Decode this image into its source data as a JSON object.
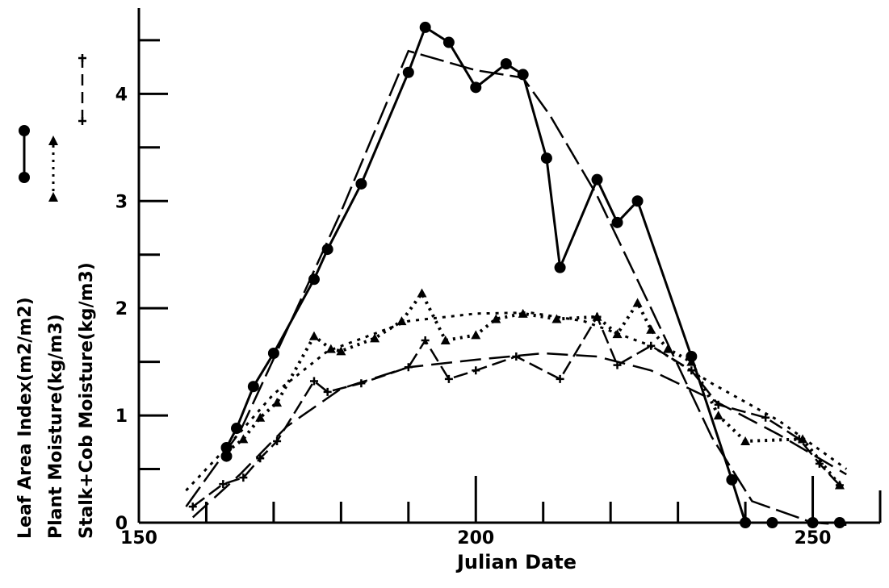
{
  "chart_data": {
    "type": "line",
    "xlabel": "Julian Date",
    "xlim": [
      150,
      260
    ],
    "ylim": [
      0,
      4.8
    ],
    "x_ticks": [
      150,
      200,
      250
    ],
    "y_ticks": [
      0,
      1,
      2,
      3,
      4
    ],
    "legend_placement": "left-rotated",
    "series": [
      {
        "name": "Leaf Area Index(m2/m2)",
        "style": "solid-with-filled-circles",
        "color": "#000000",
        "points": [
          [
            163,
            0.62
          ],
          [
            163,
            0.7
          ],
          [
            164.5,
            0.88
          ],
          [
            167,
            1.27
          ],
          [
            170,
            1.58
          ],
          [
            176,
            2.27
          ],
          [
            178,
            2.55
          ],
          [
            183,
            3.16
          ],
          [
            190,
            4.2
          ],
          [
            192.5,
            4.62
          ],
          [
            196,
            4.48
          ],
          [
            200,
            4.06
          ],
          [
            204.5,
            4.28
          ],
          [
            207,
            4.18
          ],
          [
            210.5,
            3.4
          ],
          [
            212.5,
            2.38
          ],
          [
            218,
            3.2
          ],
          [
            221,
            2.8
          ],
          [
            224,
            3.0
          ],
          [
            232,
            1.55
          ],
          [
            238,
            0.4
          ],
          [
            240,
            0.0
          ],
          [
            244,
            0.0
          ],
          [
            250,
            0.0
          ],
          [
            254,
            0.0
          ]
        ],
        "fit": [
          [
            157,
            0.15
          ],
          [
            165,
            0.85
          ],
          [
            172,
            1.8
          ],
          [
            180,
            2.9
          ],
          [
            190,
            4.4
          ],
          [
            200,
            4.22
          ],
          [
            207,
            4.15
          ],
          [
            211,
            3.8
          ],
          [
            218,
            3.05
          ],
          [
            226,
            2.0
          ],
          [
            235,
            0.8
          ],
          [
            241,
            0.2
          ],
          [
            250,
            0.0
          ],
          [
            255,
            -0.02
          ]
        ]
      },
      {
        "name": "Plant Moisture(kg/m3)",
        "style": "dotted-with-triangles",
        "color": "#000000",
        "points": [
          [
            163,
            0.66
          ],
          [
            165.5,
            0.78
          ],
          [
            168,
            0.98
          ],
          [
            170.5,
            1.12
          ],
          [
            176,
            1.74
          ],
          [
            178.5,
            1.62
          ],
          [
            180,
            1.6
          ],
          [
            185,
            1.72
          ],
          [
            189,
            1.88
          ],
          [
            192,
            2.14
          ],
          [
            195.5,
            1.7
          ],
          [
            200,
            1.75
          ],
          [
            203,
            1.9
          ],
          [
            207,
            1.95
          ],
          [
            212,
            1.9
          ],
          [
            218,
            1.92
          ],
          [
            221,
            1.76
          ],
          [
            224,
            2.05
          ],
          [
            226,
            1.8
          ],
          [
            228.5,
            1.62
          ],
          [
            232,
            1.5
          ],
          [
            236,
            1.0
          ],
          [
            240,
            0.76
          ],
          [
            248.5,
            0.78
          ],
          [
            254,
            0.35
          ]
        ],
        "fit": [
          [
            157,
            0.3
          ],
          [
            163,
            0.7
          ],
          [
            170,
            1.2
          ],
          [
            178,
            1.6
          ],
          [
            190,
            1.88
          ],
          [
            200,
            1.95
          ],
          [
            208,
            1.96
          ],
          [
            216,
            1.88
          ],
          [
            226,
            1.65
          ],
          [
            235,
            1.3
          ],
          [
            245,
            0.95
          ],
          [
            255,
            0.5
          ]
        ]
      },
      {
        "name": "Stalk+Cob Moisture(kg/m3)",
        "style": "dashed-with-crosses",
        "color": "#000000",
        "points": [
          [
            158,
            0.15
          ],
          [
            162.5,
            0.36
          ],
          [
            165.5,
            0.42
          ],
          [
            168,
            0.6
          ],
          [
            170.5,
            0.76
          ],
          [
            176,
            1.32
          ],
          [
            178,
            1.22
          ],
          [
            183,
            1.3
          ],
          [
            190,
            1.45
          ],
          [
            192.5,
            1.7
          ],
          [
            196,
            1.34
          ],
          [
            200,
            1.42
          ],
          [
            206,
            1.55
          ],
          [
            212.5,
            1.34
          ],
          [
            218,
            1.92
          ],
          [
            221,
            1.47
          ],
          [
            226,
            1.65
          ],
          [
            232,
            1.42
          ],
          [
            236,
            1.1
          ],
          [
            243,
            0.98
          ],
          [
            248,
            0.78
          ],
          [
            251,
            0.55
          ],
          [
            254,
            0.35
          ]
        ],
        "fit": [
          [
            158,
            0.05
          ],
          [
            165,
            0.45
          ],
          [
            172,
            0.9
          ],
          [
            180,
            1.25
          ],
          [
            190,
            1.45
          ],
          [
            200,
            1.52
          ],
          [
            210,
            1.58
          ],
          [
            218,
            1.55
          ],
          [
            226,
            1.42
          ],
          [
            235,
            1.15
          ],
          [
            245,
            0.82
          ],
          [
            255,
            0.45
          ]
        ]
      }
    ]
  }
}
